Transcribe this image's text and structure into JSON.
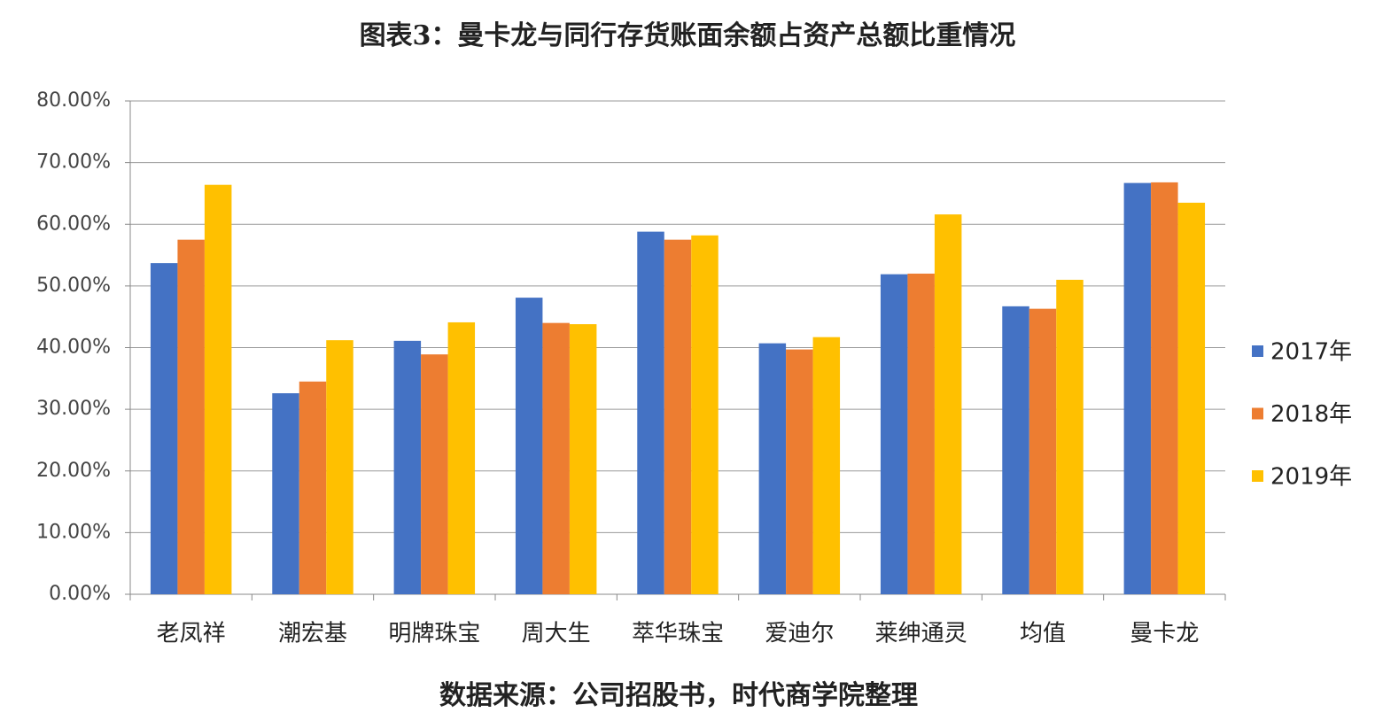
{
  "chart_data": {
    "type": "bar",
    "title": "图表3：曼卡龙与同行存货账面余额占资产总额比重情况",
    "source": "数据来源：公司招股书，时代商学院整理",
    "categories": [
      "老凤祥",
      "潮宏基",
      "明牌珠宝",
      "周大生",
      "萃华珠宝",
      "爱迪尔",
      "莱绅通灵",
      "均值",
      "曼卡龙"
    ],
    "series": [
      {
        "name": "2017年",
        "color": "#4472c4",
        "values": [
          53.7,
          32.6,
          41.1,
          48.1,
          58.8,
          40.7,
          51.9,
          46.7,
          66.7
        ]
      },
      {
        "name": "2018年",
        "color": "#ed7d31",
        "values": [
          57.5,
          34.5,
          38.9,
          44.0,
          57.5,
          39.7,
          52.0,
          46.3,
          66.8
        ]
      },
      {
        "name": "2019年",
        "color": "#ffc000",
        "values": [
          66.4,
          41.2,
          44.1,
          43.8,
          58.2,
          41.7,
          61.6,
          51.0,
          63.5
        ]
      }
    ],
    "ylim": [
      0,
      80
    ],
    "yticks": [
      {
        "value": 0,
        "label": "0.00%"
      },
      {
        "value": 10,
        "label": "10.00%"
      },
      {
        "value": 20,
        "label": "20.00%"
      },
      {
        "value": 30,
        "label": "30.00%"
      },
      {
        "value": 40,
        "label": "40.00%"
      },
      {
        "value": 50,
        "label": "50.00%"
      },
      {
        "value": 60,
        "label": "60.00%"
      },
      {
        "value": 70,
        "label": "70.00%"
      },
      {
        "value": 80,
        "label": "80.00%"
      }
    ],
    "grid": true,
    "legend": "right"
  }
}
